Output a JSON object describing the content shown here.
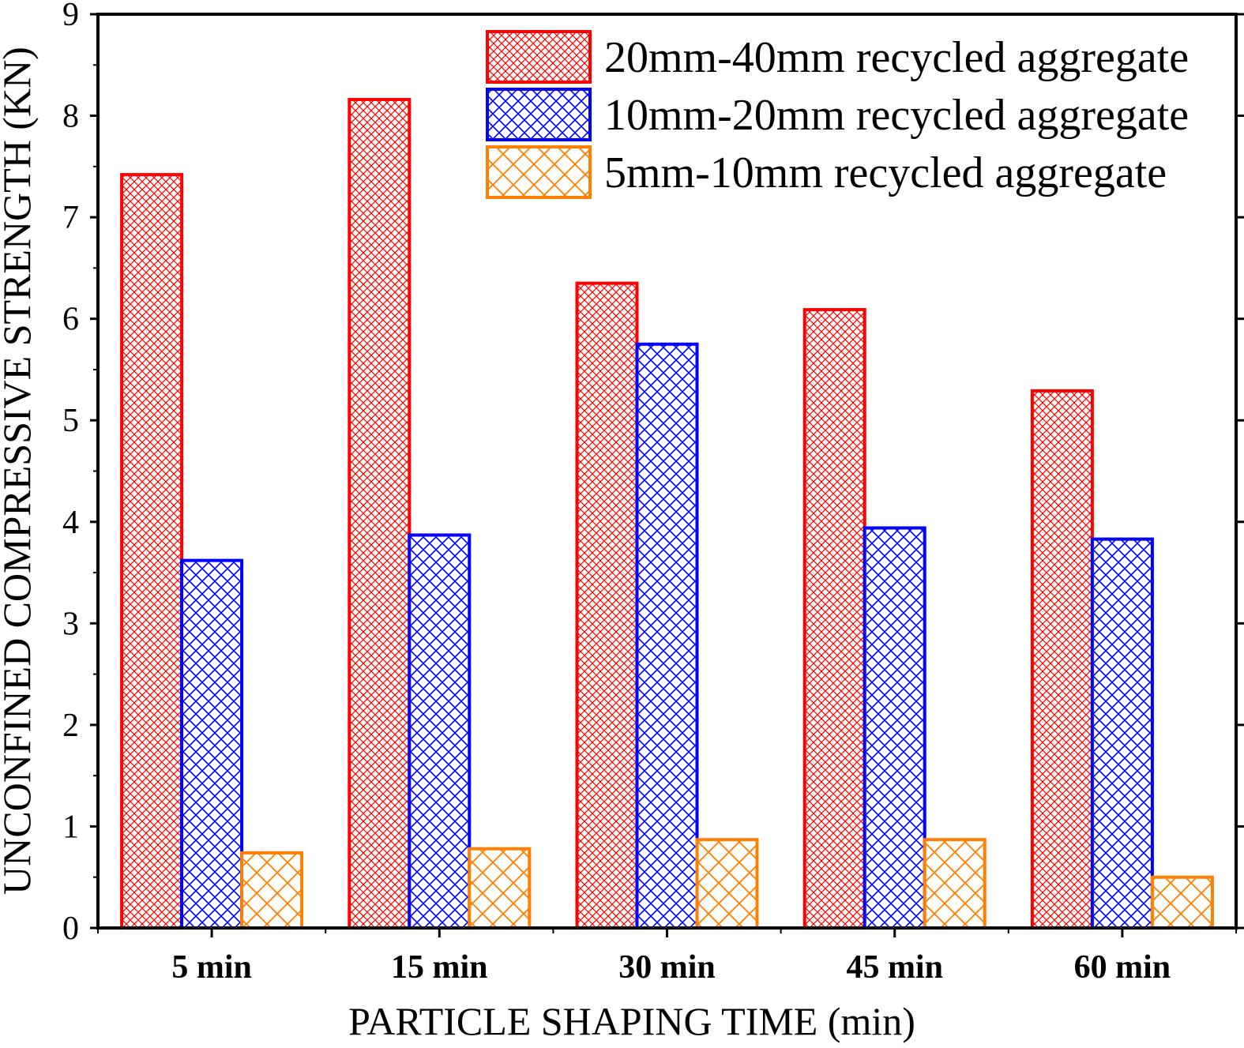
{
  "chart_data": {
    "type": "bar",
    "xlabel": "PARTICLE SHAPING TIME (min)",
    "ylabel": "UNCONFINED COMPRESSIVE STRENGTH (KN)",
    "ylim": [
      0,
      9
    ],
    "yticks": [
      "0",
      "1",
      "2",
      "3",
      "4",
      "5",
      "6",
      "7",
      "8",
      "9"
    ],
    "categories": [
      "5 min",
      "15 min",
      "30 min",
      "45 min",
      "60 min"
    ],
    "grid": false,
    "legend_position": "top-right",
    "series": [
      {
        "name": "20mm-40mm recycled aggregate",
        "values": [
          7.42,
          8.16,
          6.35,
          6.09,
          5.29
        ],
        "color": "#ff0000",
        "pattern": "fine-crosshatch"
      },
      {
        "name": "10mm-20mm recycled aggregate",
        "values": [
          3.62,
          3.87,
          5.75,
          3.94,
          3.83
        ],
        "color": "#0000ff",
        "pattern": "crosshatch"
      },
      {
        "name": "5mm-10mm recycled aggregate",
        "values": [
          0.74,
          0.78,
          0.87,
          0.87,
          0.5
        ],
        "color": "#ff8000",
        "pattern": "coarse-crosshatch"
      }
    ]
  }
}
